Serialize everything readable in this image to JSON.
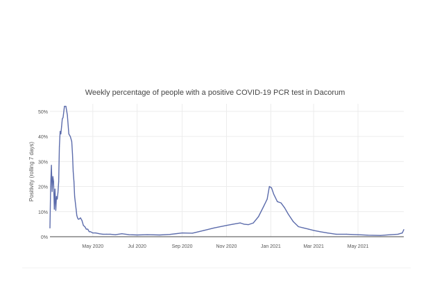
{
  "chart_data": {
    "type": "line",
    "title": "Weekly percentage of people with a positive COVID-19 PCR test in  Dacorum",
    "xlabel": "",
    "ylabel": "Positivity (rolling 7 days)",
    "y_unit": "%",
    "ylim": [
      0,
      53
    ],
    "y_ticks": [
      0,
      10,
      20,
      30,
      40,
      50
    ],
    "y_tick_labels": [
      "0%",
      "10%",
      "20%",
      "30%",
      "40%",
      "50%"
    ],
    "x_range": [
      "2020-03-03",
      "2021-07-03"
    ],
    "x_ticks": [
      "2020-05-01",
      "2020-07-01",
      "2020-09-01",
      "2020-11-01",
      "2021-01-01",
      "2021-03-01",
      "2021-05-01"
    ],
    "x_tick_labels": [
      "May 2020",
      "Jul 2020",
      "Sep 2020",
      "Nov 2020",
      "Jan 2021",
      "Mar 2021",
      "May 2021"
    ],
    "grid": true,
    "legend": "none",
    "line_color": "#5b6bab",
    "series": [
      {
        "x": [
          "2020-03-03",
          "2020-03-04",
          "2020-03-05",
          "2020-03-06",
          "2020-03-07",
          "2020-03-08",
          "2020-03-09",
          "2020-03-10",
          "2020-03-11",
          "2020-03-12",
          "2020-03-13",
          "2020-03-14",
          "2020-03-15",
          "2020-03-16",
          "2020-03-17",
          "2020-03-18",
          "2020-03-19",
          "2020-03-20",
          "2020-03-21",
          "2020-03-23",
          "2020-03-25",
          "2020-03-27",
          "2020-03-29",
          "2020-03-31",
          "2020-04-02",
          "2020-04-03",
          "2020-04-04",
          "2020-04-05",
          "2020-04-06",
          "2020-04-08",
          "2020-04-09",
          "2020-04-10",
          "2020-04-11",
          "2020-04-12",
          "2020-04-14",
          "2020-04-16",
          "2020-04-18",
          "2020-04-20",
          "2020-04-22",
          "2020-04-24",
          "2020-04-26",
          "2020-04-28",
          "2020-05-01",
          "2020-05-05",
          "2020-05-10",
          "2020-05-15",
          "2020-05-20",
          "2020-05-25",
          "2020-06-01",
          "2020-06-10",
          "2020-06-20",
          "2020-07-01",
          "2020-07-15",
          "2020-08-01",
          "2020-08-15",
          "2020-09-01",
          "2020-09-15",
          "2020-10-01",
          "2020-10-15",
          "2020-11-01",
          "2020-11-10",
          "2020-11-20",
          "2020-11-25",
          "2020-12-01",
          "2020-12-08",
          "2020-12-15",
          "2020-12-22",
          "2020-12-27",
          "2020-12-30",
          "2021-01-02",
          "2021-01-05",
          "2021-01-10",
          "2021-01-15",
          "2021-01-20",
          "2021-01-25",
          "2021-02-01",
          "2021-02-08",
          "2021-02-15",
          "2021-02-22",
          "2021-03-01",
          "2021-03-10",
          "2021-03-20",
          "2021-04-01",
          "2021-04-15",
          "2021-05-01",
          "2021-05-15",
          "2021-06-01",
          "2021-06-15",
          "2021-06-25",
          "2021-07-01",
          "2021-07-03"
        ],
        "y": [
          3.5,
          20,
          28.5,
          18,
          24,
          22,
          11,
          19,
          10.5,
          16,
          15,
          17.5,
          22,
          36,
          42,
          41,
          44,
          47,
          47.5,
          52,
          52,
          48.5,
          41,
          40,
          38,
          33,
          26,
          22,
          16,
          11,
          8.5,
          7.5,
          7,
          7,
          7.5,
          6.5,
          4.5,
          4,
          3,
          3,
          2,
          2,
          1.5,
          1.5,
          1.2,
          1,
          1,
          1,
          0.8,
          1.2,
          0.8,
          0.7,
          0.8,
          0.7,
          0.9,
          1.5,
          1.4,
          2.5,
          3.5,
          4.5,
          5,
          5.5,
          5,
          4.8,
          5.5,
          8,
          12,
          15,
          20,
          19.5,
          17,
          14,
          13.5,
          11.5,
          9,
          6,
          4,
          3.5,
          3,
          2.5,
          2,
          1.5,
          1,
          1,
          0.8,
          0.6,
          0.5,
          0.8,
          1,
          1.5,
          2.8
        ]
      }
    ]
  }
}
